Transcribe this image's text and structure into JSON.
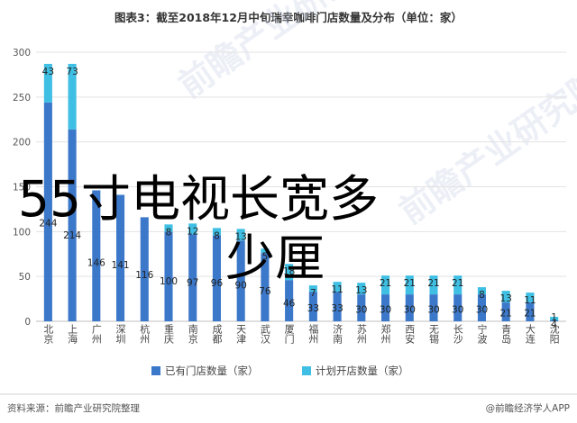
{
  "overlay_text": {
    "line1": "55寸电视长宽多",
    "line2": "少厘"
  },
  "watermark_text": "前瞻产业研究院",
  "footer": {
    "source": "资料来源：前瞻产业研究院整理",
    "brand": "@前瞻经济学人APP"
  },
  "chart_data": {
    "type": "bar",
    "stacked": true,
    "title": "图表3：截至2018年12月中旬瑞幸咖啡门店数量及分布（单位：家）",
    "xlabel": "",
    "ylabel": "",
    "ylim": [
      0,
      300
    ],
    "yticks": [
      0,
      50,
      100,
      150,
      200,
      250,
      300
    ],
    "grid": "horizontal",
    "legend_position": "bottom",
    "categories": [
      "北京",
      "上海",
      "广州",
      "深圳",
      "杭州",
      "重庆",
      "南京",
      "成都",
      "天津",
      "武汉",
      "厦门",
      "福州",
      "济南",
      "苏州",
      "郑州",
      "西安",
      "无锡",
      "长沙",
      "宁波",
      "青岛",
      "大连",
      "沈阳"
    ],
    "series": [
      {
        "name": "已有门店数量（家）",
        "color": "#3b78c9",
        "values": [
          244,
          214,
          146,
          141,
          116,
          100,
          97,
          96,
          90,
          76,
          46,
          33,
          33,
          30,
          30,
          30,
          30,
          30,
          30,
          21,
          21,
          1
        ],
        "labels": [
          "244",
          "214",
          "146",
          "141",
          "116",
          "100",
          "97",
          "96",
          "90",
          "76",
          "46",
          "33",
          "33",
          "30",
          "30",
          "30",
          "30",
          "30",
          "30",
          "21",
          "21",
          "1"
        ]
      },
      {
        "name": "计划开店数量（家）",
        "color": "#3ebfe3",
        "values": [
          43,
          73,
          0,
          0,
          0,
          8,
          12,
          8,
          13,
          5,
          18,
          7,
          11,
          13,
          21,
          21,
          21,
          21,
          8,
          13,
          11,
          4
        ],
        "labels": [
          "43",
          "73",
          "",
          "",
          "",
          "8",
          "12",
          "8",
          "13",
          "5",
          "18",
          "7",
          "11",
          "13",
          "21",
          "21",
          "21",
          "21",
          "8",
          "13",
          "11",
          "4"
        ]
      }
    ]
  }
}
